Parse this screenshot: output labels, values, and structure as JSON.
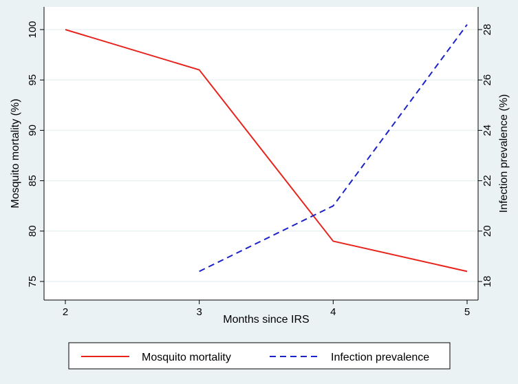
{
  "chart_data": {
    "type": "line",
    "xlabel": "Months since IRS",
    "ylabel_left": "Mosquito mortality (%)",
    "ylabel_right": "Infection prevalence (%)",
    "x_ticks": [
      2,
      3,
      4,
      5
    ],
    "y_left_ticks": [
      75,
      80,
      85,
      90,
      95,
      100
    ],
    "y_right_ticks": [
      18,
      20,
      22,
      24,
      26,
      28
    ],
    "xlim": [
      2,
      5
    ],
    "ylim_left": [
      75,
      100
    ],
    "ylim_right": [
      18,
      28
    ],
    "grid": true,
    "legend_position": "bottom",
    "series": [
      {
        "name": "Mosquito mortality",
        "axis": "left",
        "style": "solid",
        "color": "#e8231c",
        "x": [
          2,
          3,
          4,
          5
        ],
        "values": [
          100,
          96,
          79,
          76
        ]
      },
      {
        "name": "Infection prevalence",
        "axis": "right",
        "style": "dashed",
        "color": "#1a22c8",
        "x": [
          3,
          4,
          5
        ],
        "values": [
          18.4,
          21.0,
          28.2
        ]
      }
    ],
    "colors": {
      "background": "#eaf2f3",
      "plot_background": "#ffffff",
      "grid": "#eaf2f3"
    }
  }
}
